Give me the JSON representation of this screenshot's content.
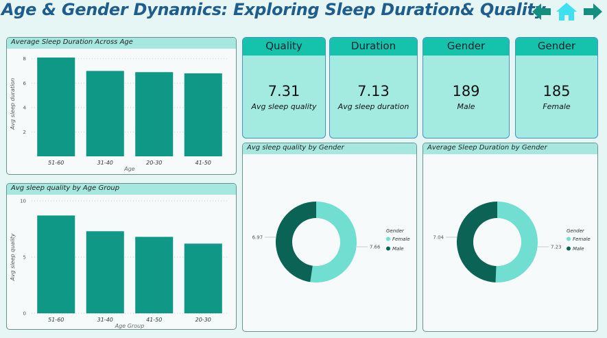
{
  "header": {
    "title": "Age & Gender Dynamics: Exploring Sleep Duration& Quality",
    "icons": [
      "arrow-left-icon",
      "home-icon",
      "arrow-right-icon"
    ]
  },
  "colors": {
    "bar": "#109886",
    "male": "#0a6355",
    "female": "#71ded2",
    "card_head": "#15c3ad",
    "card_body": "#a3eae1"
  },
  "cards": [
    {
      "title": "Quality",
      "value": "7.31",
      "label": "Avg sleep quality"
    },
    {
      "title": "Duration",
      "value": "7.13",
      "label": "Avg sleep duration"
    },
    {
      "title": "Gender",
      "value": "189",
      "label": "Male"
    },
    {
      "title": "Gender",
      "value": "185",
      "label": "Female"
    }
  ],
  "chart_data": [
    {
      "type": "bar",
      "title": "Average Sleep Duration Across Age",
      "xlabel": "Age",
      "ylabel": "Avg sleep duration",
      "categories": [
        "51-60",
        "31-40",
        "20-30",
        "41-50"
      ],
      "values": [
        8.1,
        7.0,
        6.9,
        6.8
      ],
      "ylim": [
        0,
        8.6
      ],
      "yticks": [
        2,
        4,
        6,
        8
      ],
      "grid": true
    },
    {
      "type": "bar",
      "title": "Avg sleep quality by Age Group",
      "xlabel": "Age Group",
      "ylabel": "Avg sleep quality",
      "categories": [
        "51-60",
        "31-40",
        "41-50",
        "20-30"
      ],
      "values": [
        8.7,
        7.3,
        6.8,
        6.2
      ],
      "ylim": [
        0,
        10
      ],
      "yticks": [
        0,
        5,
        10
      ],
      "grid": true
    },
    {
      "type": "pie",
      "title": "Avg sleep quality by Gender",
      "legend_title": "Gender",
      "legend_placement": "right",
      "labels": [
        "Female",
        "Male"
      ],
      "values": [
        7.66,
        6.97
      ],
      "value_labels": [
        "7.66",
        "6.97"
      ]
    },
    {
      "type": "pie",
      "title": "Average Sleep Duration by Gender",
      "legend_title": "Gender",
      "legend_placement": "right",
      "labels": [
        "Female",
        "Male"
      ],
      "values": [
        7.23,
        7.04
      ],
      "value_labels": [
        "7.23",
        "7.04"
      ]
    }
  ]
}
